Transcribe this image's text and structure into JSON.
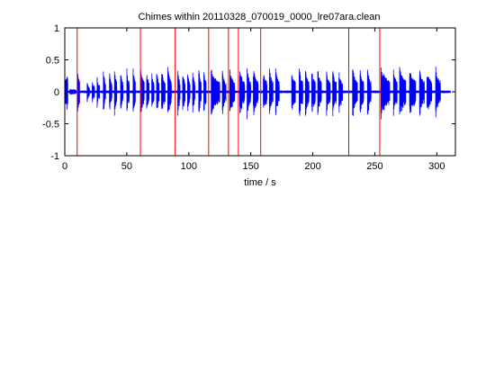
{
  "chart_data": {
    "type": "line",
    "title": "Chimes within 20110328_070019_0000_lre07ara.clean",
    "xlabel": "time / s",
    "ylabel": "",
    "xlim": [
      0,
      315
    ],
    "ylim": [
      -1,
      1
    ],
    "xticks": [
      "0",
      "50",
      "100",
      "150",
      "200",
      "250",
      "300"
    ],
    "yticks": [
      "1",
      "0.5",
      "0",
      "-0.5",
      "-1"
    ],
    "grid": false,
    "waveform_color": "#0000ff",
    "marker_color": "#ff0000",
    "series": [
      {
        "values": "audio waveform",
        "bursts": [
          [
            10,
            12,
            0.4
          ],
          [
            18,
            20,
            0.17
          ],
          [
            22,
            24,
            0.22
          ],
          [
            26,
            28,
            0.25
          ],
          [
            31,
            33,
            0.38
          ],
          [
            36,
            38,
            0.35
          ],
          [
            40,
            42,
            0.4
          ],
          [
            45,
            47,
            0.35
          ],
          [
            50,
            52,
            0.38
          ],
          [
            55,
            57,
            0.4
          ],
          [
            61,
            64,
            0.41
          ],
          [
            66,
            68,
            0.38
          ],
          [
            70,
            72,
            0.35
          ],
          [
            74,
            76,
            0.4
          ],
          [
            78,
            81,
            0.38
          ],
          [
            83,
            86,
            0.41
          ],
          [
            91,
            93,
            0.4
          ],
          [
            95,
            97,
            0.38
          ],
          [
            99,
            101,
            0.35
          ],
          [
            103,
            105,
            0.38
          ],
          [
            108,
            110,
            0.4
          ],
          [
            112,
            114,
            0.38
          ],
          [
            118,
            125,
            0.38
          ],
          [
            127,
            130,
            0.35
          ],
          [
            133,
            137,
            0.38
          ],
          [
            141,
            145,
            0.38
          ],
          [
            147,
            150,
            0.4
          ],
          [
            152,
            156,
            0.4
          ],
          [
            160,
            163,
            0.38
          ],
          [
            165,
            168,
            0.4
          ],
          [
            170,
            173,
            0.38
          ],
          [
            183,
            186,
            0.38
          ],
          [
            189,
            192,
            0.4
          ],
          [
            194,
            197,
            0.4
          ],
          [
            199,
            202,
            0.38
          ],
          [
            204,
            207,
            0.38
          ],
          [
            211,
            214,
            0.35
          ],
          [
            216,
            219,
            0.38
          ],
          [
            221,
            224,
            0.38
          ],
          [
            232,
            236,
            0.4
          ],
          [
            238,
            241,
            0.38
          ],
          [
            244,
            247,
            0.4
          ],
          [
            255,
            262,
            0.42
          ],
          [
            265,
            268,
            0.4
          ],
          [
            270,
            275,
            0.42
          ],
          [
            278,
            283,
            0.4
          ],
          [
            286,
            290,
            0.38
          ],
          [
            292,
            296,
            0.38
          ],
          [
            299,
            303,
            0.42
          ]
        ]
      }
    ],
    "chime_markers": [
      10,
      61,
      89,
      116,
      132,
      140,
      158,
      229,
      254
    ]
  }
}
